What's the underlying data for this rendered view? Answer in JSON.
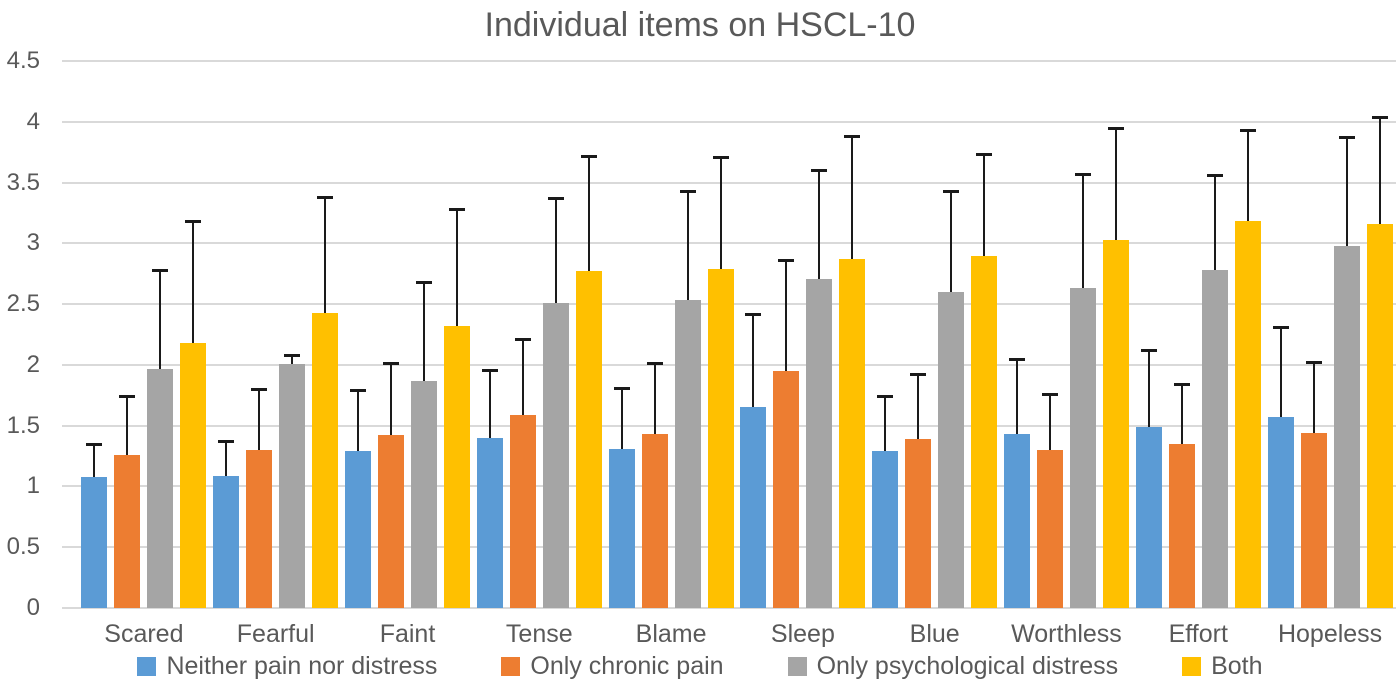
{
  "chart_data": {
    "type": "bar",
    "title": "Individual items on HSCL-10",
    "categories": [
      "Scared",
      "Fearful",
      "Faint",
      "Tense",
      "Blame",
      "Sleep",
      "Blue",
      "Worthless",
      "Effort",
      "Hopeless"
    ],
    "series": [
      {
        "name": "Neither pain nor distress",
        "color": "#5B9BD5",
        "values": [
          1.08,
          1.09,
          1.29,
          1.4,
          1.31,
          1.65,
          1.29,
          1.43,
          1.49,
          1.57
        ],
        "error_top": [
          1.36,
          1.38,
          1.8,
          1.97,
          1.82,
          2.43,
          1.75,
          2.06,
          2.13,
          2.32
        ]
      },
      {
        "name": "Only chronic pain",
        "color": "#ED7D31",
        "values": [
          1.26,
          1.3,
          1.42,
          1.59,
          1.43,
          1.95,
          1.39,
          1.3,
          1.35,
          1.44
        ],
        "error_top": [
          1.75,
          1.81,
          2.02,
          2.22,
          2.02,
          2.87,
          1.93,
          1.77,
          1.85,
          2.03
        ]
      },
      {
        "name": "Only psychological distress",
        "color": "#A5A5A5",
        "values": [
          1.97,
          2.01,
          1.87,
          2.51,
          2.53,
          2.71,
          2.6,
          2.63,
          2.78,
          2.98
        ],
        "error_top": [
          2.79,
          2.09,
          2.69,
          3.38,
          3.44,
          3.61,
          3.44,
          3.58,
          3.57,
          3.88
        ]
      },
      {
        "name": "Both",
        "color": "#FFC000",
        "values": [
          2.18,
          2.43,
          2.32,
          2.77,
          2.79,
          2.87,
          2.9,
          3.03,
          3.18,
          3.16
        ],
        "error_top": [
          3.19,
          3.39,
          3.29,
          3.73,
          3.72,
          3.89,
          3.74,
          3.96,
          3.94,
          4.05
        ]
      }
    ],
    "ylim": [
      0,
      4.5
    ],
    "yticks": [
      "4.5",
      "4",
      "3.5",
      "3",
      "2.5",
      "2",
      "1.5",
      "1",
      "0.5",
      "0"
    ],
    "grid": true,
    "legend_position": "bottom",
    "error_bars": "upper-only"
  },
  "colors": {
    "title_text": "#595959",
    "axis_text": "#595959",
    "gridline": "#D9D9D9",
    "error_bar": "#1A1A1A",
    "background": "#FFFFFF"
  }
}
